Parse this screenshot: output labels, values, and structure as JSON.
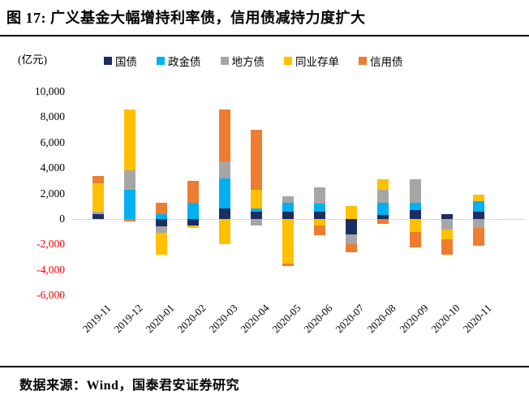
{
  "title": "图 17:  广义基金大幅增持利率债，信用债减持力度扩大",
  "unit_label": "(亿元)",
  "footer": {
    "source": "数据来源：Wind，国泰君安证券研究"
  },
  "colors": {
    "title_text": "#000000",
    "rule": "#000000",
    "negative_tick_label": "#ff0000",
    "zero_line": "#d9d9d9",
    "background": "#ffffff"
  },
  "chart_data": {
    "type": "bar",
    "stacked": true,
    "title": "广义基金各券种净增持规模（月度）",
    "xlabel": "",
    "ylabel": "亿元",
    "ylim": [
      -6000,
      10000
    ],
    "grid": false,
    "legend_position": "top",
    "yticks": [
      10000,
      8000,
      6000,
      4000,
      2000,
      0,
      -2000,
      -4000,
      -6000
    ],
    "ytick_labels": [
      "10,000",
      "8,000",
      "6,000",
      "4,000",
      "2,000",
      "0",
      "-2,000",
      "-4,000",
      "-6,000"
    ],
    "categories": [
      "2019-11",
      "2019-12",
      "2020-01",
      "2020-02",
      "2020-03",
      "2020-04",
      "2020-05",
      "2020-06",
      "2020-07",
      "2020-08",
      "2020-09",
      "2020-10",
      "2020-11"
    ],
    "series": [
      {
        "name": "国债",
        "color": "#1c2d62",
        "values": [
          400,
          0,
          -600,
          -500,
          800,
          600,
          600,
          600,
          -1200,
          300,
          700,
          400,
          600
        ]
      },
      {
        "name": "政金债",
        "color": "#00b0f0",
        "values": [
          0,
          2300,
          400,
          1300,
          2400,
          200,
          700,
          600,
          0,
          1000,
          600,
          0,
          800
        ]
      },
      {
        "name": "地方债",
        "color": "#a6a6a6",
        "values": [
          200,
          1500,
          -500,
          0,
          1300,
          -500,
          500,
          1300,
          -800,
          1000,
          1800,
          -800,
          -700
        ]
      },
      {
        "name": "同业存单",
        "color": "#ffc000",
        "values": [
          2200,
          4800,
          -1700,
          -200,
          -2000,
          1500,
          -3500,
          -500,
          1000,
          800,
          -1000,
          -800,
          500
        ]
      },
      {
        "name": "信用债",
        "color": "#ed7d31",
        "values": [
          600,
          -200,
          900,
          1700,
          4100,
          4700,
          -200,
          -800,
          -600,
          -400,
          -1200,
          -1200,
          -1400
        ]
      }
    ]
  }
}
